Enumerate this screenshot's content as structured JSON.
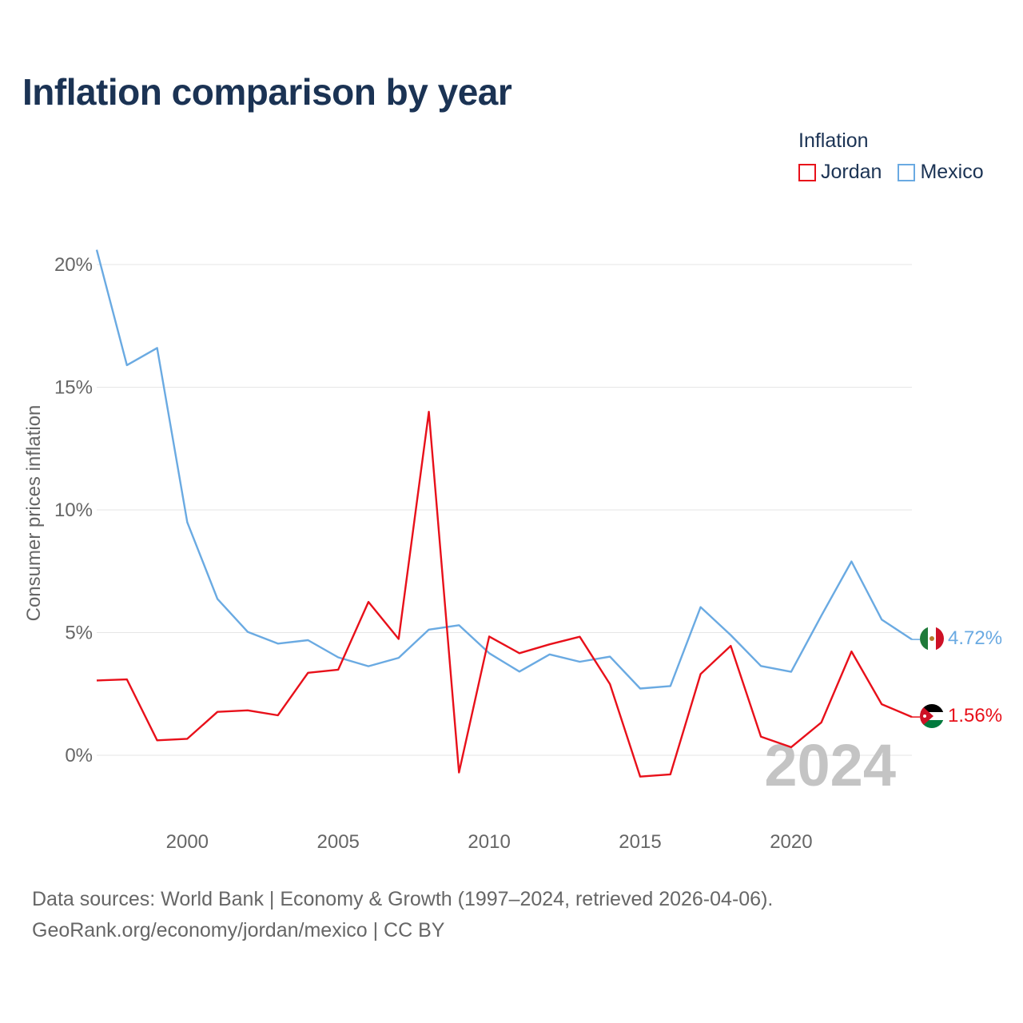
{
  "title": "Inflation comparison by year",
  "legend": {
    "title": "Inflation",
    "items": [
      {
        "name": "Jordan",
        "color": "#e8101a"
      },
      {
        "name": "Mexico",
        "color": "#6aaae2"
      }
    ]
  },
  "watermark_year": "2024",
  "footer": {
    "line1": "Data sources: World Bank | Economy & Growth (1997–2024, retrieved 2026-04-06).",
    "line2": "GeoRank.org/economy/jordan/mexico | CC BY"
  },
  "chart_data": {
    "type": "line",
    "title": "Inflation comparison by year",
    "xlabel": "",
    "ylabel": "Consumer prices inflation",
    "xlim": [
      1997,
      2024
    ],
    "ylim": [
      -2.3,
      21
    ],
    "x_ticks": [
      2000,
      2005,
      2010,
      2015,
      2020
    ],
    "y_ticks": [
      0,
      5,
      10,
      15,
      20
    ],
    "y_tick_labels": [
      "0%",
      "5%",
      "10%",
      "15%",
      "20%"
    ],
    "grid": true,
    "legend_position": "top-right",
    "x": [
      1997,
      1998,
      1999,
      2000,
      2001,
      2002,
      2003,
      2004,
      2005,
      2006,
      2007,
      2008,
      2009,
      2010,
      2011,
      2012,
      2013,
      2014,
      2015,
      2016,
      2017,
      2018,
      2019,
      2020,
      2021,
      2022,
      2023,
      2024
    ],
    "series": [
      {
        "name": "Jordan",
        "color": "#e8101a",
        "end_label": "1.56%",
        "flag": "jordan-flag",
        "values": [
          3.05,
          3.09,
          0.61,
          0.67,
          1.77,
          1.83,
          1.63,
          3.36,
          3.49,
          6.25,
          4.74,
          14.0,
          -0.7,
          4.84,
          4.16,
          4.52,
          4.83,
          2.9,
          -0.87,
          -0.78,
          3.31,
          4.46,
          0.76,
          0.33,
          1.34,
          4.23,
          2.08,
          1.56
        ]
      },
      {
        "name": "Mexico",
        "color": "#6aaae2",
        "end_label": "4.72%",
        "flag": "mexico-flag",
        "values": [
          20.6,
          15.9,
          16.6,
          9.5,
          6.37,
          5.03,
          4.55,
          4.69,
          3.99,
          3.63,
          3.97,
          5.12,
          5.3,
          4.16,
          3.41,
          4.11,
          3.81,
          4.02,
          2.72,
          2.82,
          6.04,
          4.9,
          3.64,
          3.4,
          5.69,
          7.9,
          5.53,
          4.72
        ]
      }
    ]
  }
}
